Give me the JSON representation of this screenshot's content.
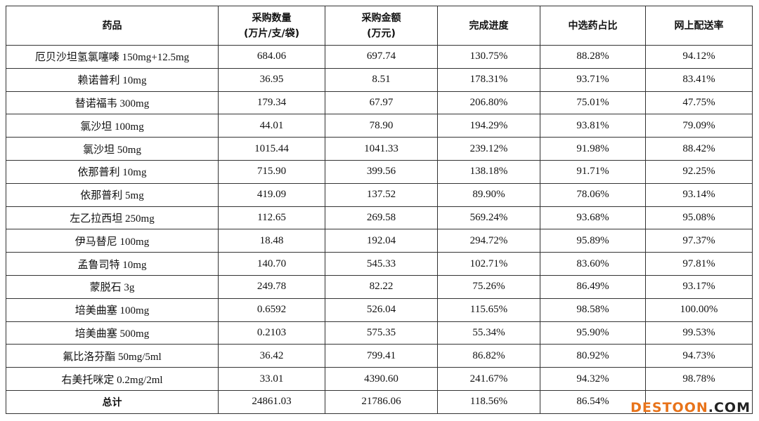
{
  "table": {
    "header": [
      [
        "药品"
      ],
      [
        "采购数量",
        "(万片/支/袋)"
      ],
      [
        "采购金额",
        "(万元)"
      ],
      [
        "完成进度"
      ],
      [
        "中选药占比"
      ],
      [
        "网上配送率"
      ]
    ],
    "rows": [
      [
        "厄贝沙坦氢氯噻嗪 150mg+12.5mg",
        "684.06",
        "697.74",
        "130.75%",
        "88.28%",
        "94.12%"
      ],
      [
        "赖诺普利 10mg",
        "36.95",
        "8.51",
        "178.31%",
        "93.71%",
        "83.41%"
      ],
      [
        "替诺福韦 300mg",
        "179.34",
        "67.97",
        "206.80%",
        "75.01%",
        "47.75%"
      ],
      [
        "氯沙坦 100mg",
        "44.01",
        "78.90",
        "194.29%",
        "93.81%",
        "79.09%"
      ],
      [
        "氯沙坦 50mg",
        "1015.44",
        "1041.33",
        "239.12%",
        "91.98%",
        "88.42%"
      ],
      [
        "依那普利 10mg",
        "715.90",
        "399.56",
        "138.18%",
        "91.71%",
        "92.25%"
      ],
      [
        "依那普利 5mg",
        "419.09",
        "137.52",
        "89.90%",
        "78.06%",
        "93.14%"
      ],
      [
        "左乙拉西坦 250mg",
        "112.65",
        "269.58",
        "569.24%",
        "93.68%",
        "95.08%"
      ],
      [
        "伊马替尼 100mg",
        "18.48",
        "192.04",
        "294.72%",
        "95.89%",
        "97.37%"
      ],
      [
        "孟鲁司特 10mg",
        "140.70",
        "545.33",
        "102.71%",
        "83.60%",
        "97.81%"
      ],
      [
        "蒙脱石 3g",
        "249.78",
        "82.22",
        "75.26%",
        "86.49%",
        "93.17%"
      ],
      [
        "培美曲塞 100mg",
        "0.6592",
        "526.04",
        "115.65%",
        "98.58%",
        "100.00%"
      ],
      [
        "培美曲塞 500mg",
        "0.2103",
        "575.35",
        "55.34%",
        "95.90%",
        "99.53%"
      ],
      [
        "氟比洛芬酯 50mg/5ml",
        "36.42",
        "799.41",
        "86.82%",
        "80.92%",
        "94.73%"
      ],
      [
        "右美托咪定 0.2mg/2ml",
        "33.01",
        "4390.60",
        "241.67%",
        "94.32%",
        "98.78%"
      ],
      [
        "总计",
        "24861.03",
        "21786.06",
        "118.56%",
        "86.54%",
        ""
      ]
    ]
  },
  "watermark": {
    "brand": "DESTOON",
    "suffix": ".COM"
  }
}
